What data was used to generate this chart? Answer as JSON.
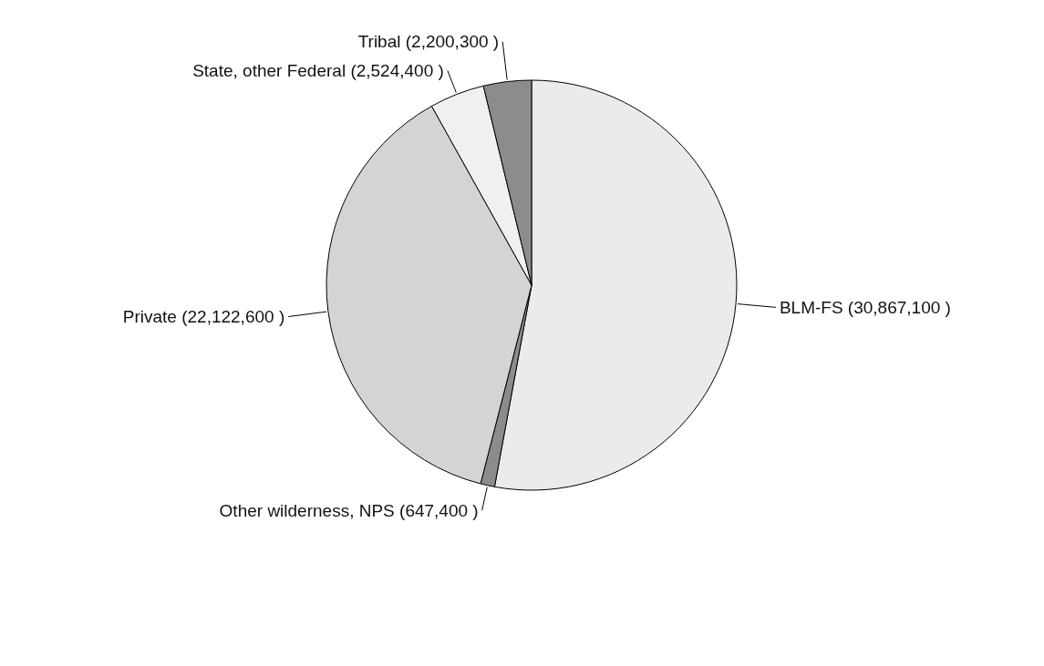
{
  "chart_data": {
    "type": "pie",
    "categories": [
      "BLM-FS (30,867,100 )",
      "Other wilderness, NPS (647,400 )",
      "Private (22,122,600 )",
      "State, other Federal (2,524,400 )",
      "Tribal (2,200,300 )"
    ],
    "values": [
      30867100,
      647400,
      22122600,
      2524400,
      2200300
    ],
    "colors": [
      "#ebebeb",
      "#8c8c8c",
      "#d4d4d4",
      "#f0f0f0",
      "#8c8c8c"
    ]
  }
}
